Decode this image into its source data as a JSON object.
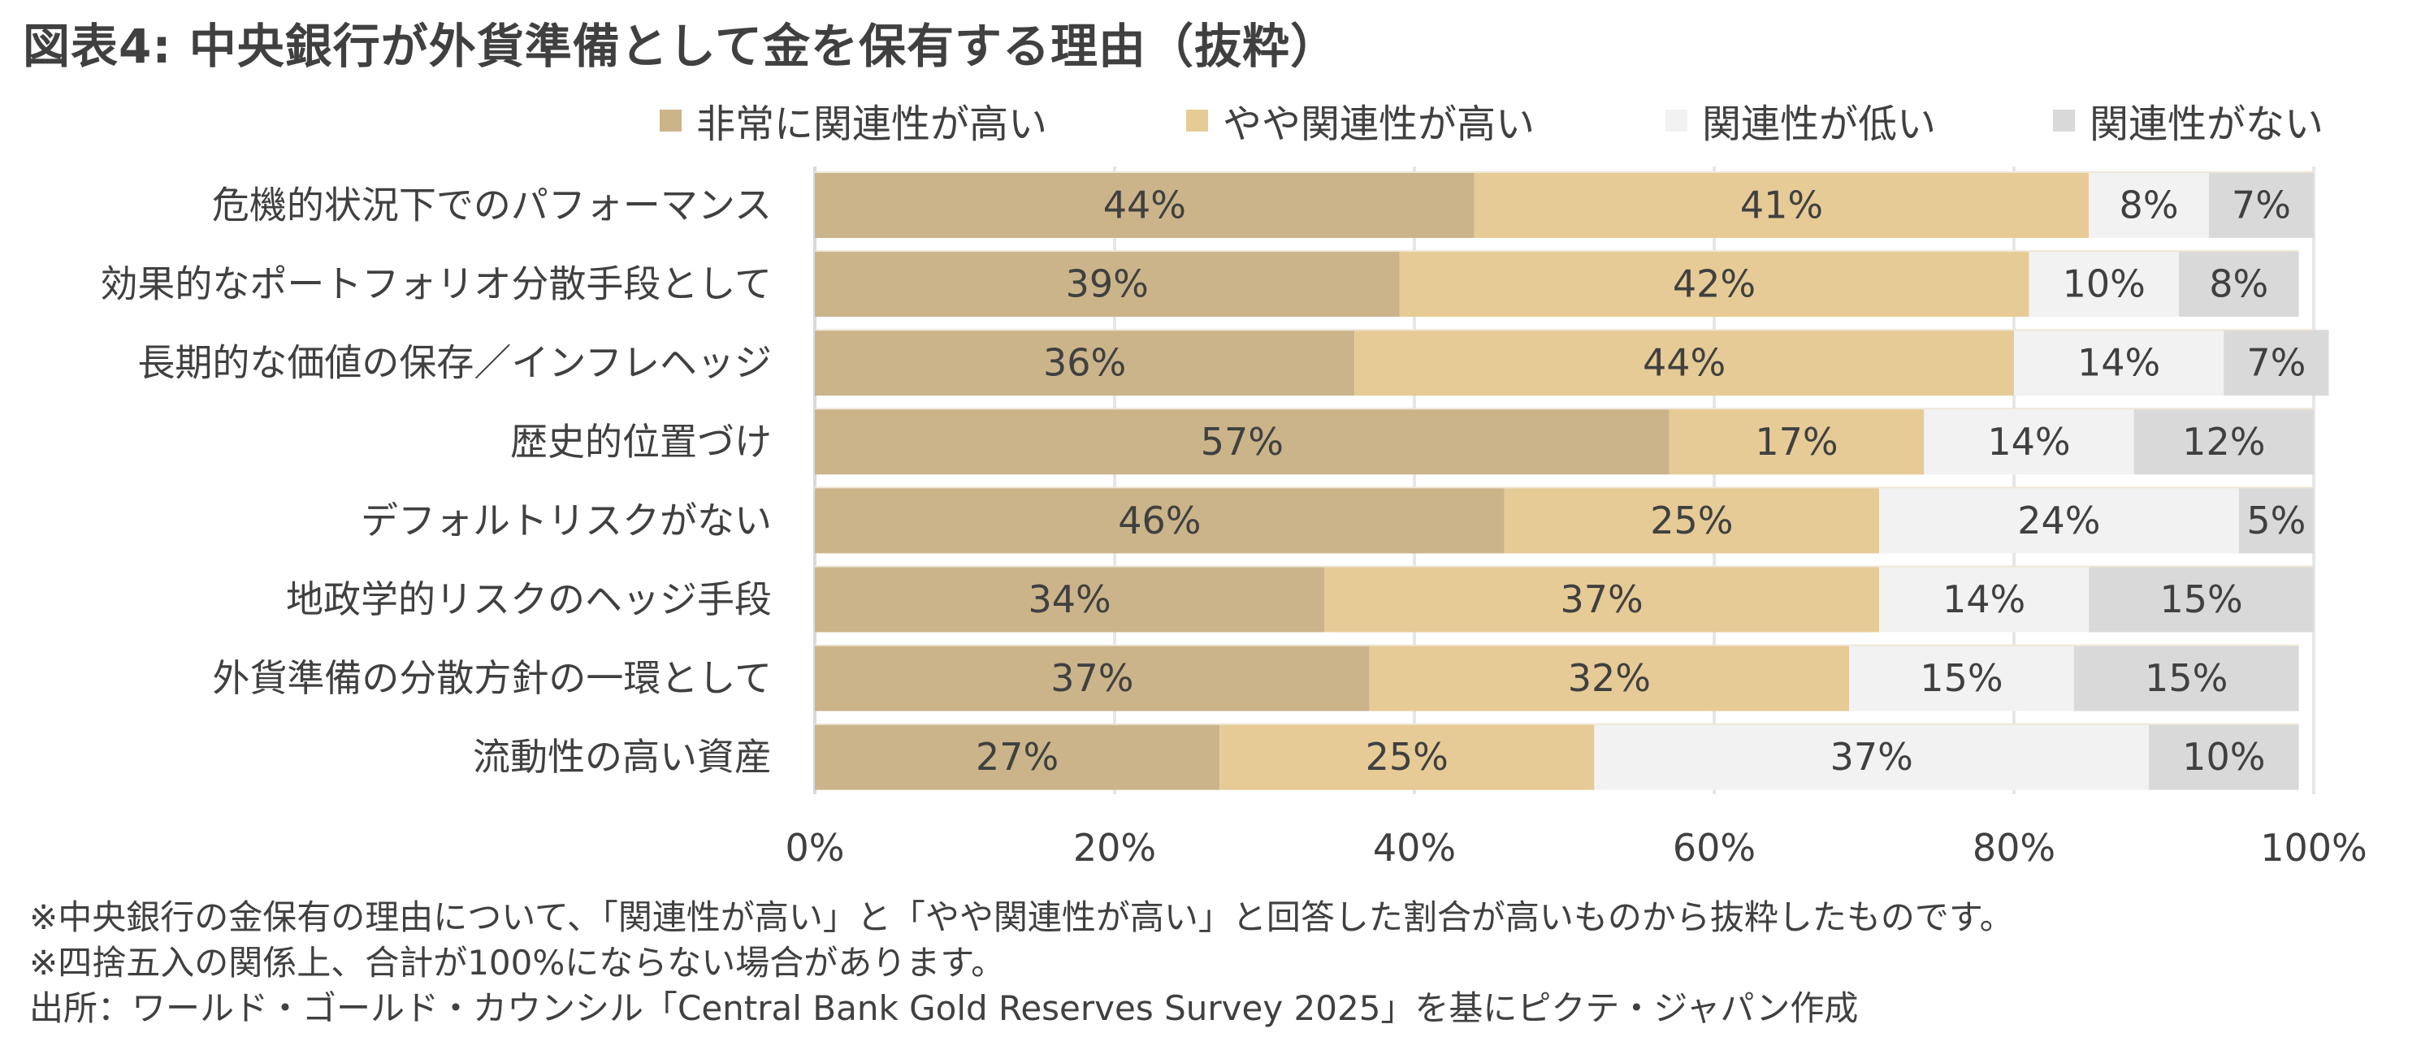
{
  "title": "図表4: 中央銀行が外貨準備として金を保有する理由（抜粋）",
  "chart_data": {
    "type": "bar",
    "orientation": "horizontal",
    "stacked": true,
    "title": "図表4: 中央銀行が外貨準備として金を保有する理由（抜粋）",
    "xlabel": "",
    "ylabel": "",
    "xlim": [
      0,
      100
    ],
    "x_ticks": [
      "0%",
      "20%",
      "40%",
      "60%",
      "80%",
      "100%"
    ],
    "x_tick_values": [
      0,
      20,
      40,
      60,
      80,
      100
    ],
    "grid": true,
    "legend_position": "top-right",
    "categories": [
      "危機的状況下でのパフォーマンス",
      "効果的なポートフォリオ分散手段として",
      "長期的な価値の保存／インフレヘッジ",
      "歴史的位置づけ",
      "デフォルトリスクがない",
      "地政学的リスクのヘッジ手段",
      "外貨準備の分散方針の一環として",
      "流動性の高い資産"
    ],
    "series": [
      {
        "name": "非常に関連性が高い",
        "color": "#CBB48A",
        "values": [
          44,
          39,
          36,
          57,
          46,
          34,
          37,
          27
        ]
      },
      {
        "name": "やや関連性が高い",
        "color": "#E6CB96",
        "values": [
          41,
          42,
          44,
          17,
          25,
          37,
          32,
          25
        ]
      },
      {
        "name": "関連性が低い",
        "color": "#F2F2F2",
        "values": [
          8,
          10,
          14,
          14,
          24,
          14,
          15,
          37
        ]
      },
      {
        "name": "関連性がない",
        "color": "#D9D9D9",
        "values": [
          7,
          8,
          7,
          12,
          5,
          15,
          15,
          10
        ]
      }
    ],
    "value_suffix": "%"
  },
  "notes": [
    "※中央銀行の金保有の理由について、「関連性が高い」と「やや関連性が高い」と回答した割合が高いものから抜粋したものです。",
    "※四捨五入の関係上、合計が100%にならない場合があります。",
    "出所：ワールド・ゴールド・カウンシル「Central Bank Gold Reserves Survey 2025」を基にピクテ・ジャパン作成"
  ]
}
